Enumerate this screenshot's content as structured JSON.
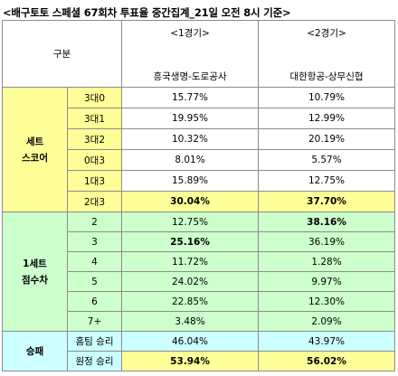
{
  "title": "<배구토토 스페셜 67회차 투표율 중간집계_21일 오전 8시 기준>",
  "header": {
    "category_label": "구분",
    "games": [
      {
        "number": "<1경기>",
        "matchup": "흥국생명-도로공사"
      },
      {
        "number": "<2경기>",
        "matchup": "대한항공-상무신협"
      }
    ]
  },
  "sections": [
    {
      "name_line1": "세트",
      "name_line2": "스코어",
      "color": "#ffff99",
      "rows": [
        {
          "label": "3대0",
          "g1": "15.77%",
          "g2": "10.79%",
          "g1_bold": false,
          "g2_bold": false
        },
        {
          "label": "3대1",
          "g1": "19.95%",
          "g2": "12.99%",
          "g1_bold": false,
          "g2_bold": false
        },
        {
          "label": "3대2",
          "g1": "10.32%",
          "g2": "20.19%",
          "g1_bold": false,
          "g2_bold": false
        },
        {
          "label": "0대3",
          "g1": "8.01%",
          "g2": "5.57%",
          "g1_bold": false,
          "g2_bold": false
        },
        {
          "label": "1대3",
          "g1": "15.89%",
          "g2": "12.75%",
          "g1_bold": false,
          "g2_bold": false
        },
        {
          "label": "2대3",
          "g1": "30.04%",
          "g2": "37.70%",
          "g1_bold": true,
          "g2_bold": true
        }
      ]
    },
    {
      "name_line1": "1세트",
      "name_line2": "점수차",
      "color": "#ccffcc",
      "rows": [
        {
          "label": "2",
          "g1": "12.75%",
          "g2": "38.16%",
          "g1_bold": false,
          "g2_bold": true
        },
        {
          "label": "3",
          "g1": "25.16%",
          "g2": "36.19%",
          "g1_bold": true,
          "g2_bold": false
        },
        {
          "label": "4",
          "g1": "11.72%",
          "g2": "1.28%",
          "g1_bold": false,
          "g2_bold": false
        },
        {
          "label": "5",
          "g1": "24.02%",
          "g2": "9.97%",
          "g1_bold": false,
          "g2_bold": false
        },
        {
          "label": "6",
          "g1": "22.85%",
          "g2": "12.30%",
          "g1_bold": false,
          "g2_bold": false
        },
        {
          "label": "7+",
          "g1": "3.48%",
          "g2": "2.09%",
          "g1_bold": false,
          "g2_bold": false
        }
      ]
    },
    {
      "name_line1": "승패",
      "name_line2": "",
      "color": "#ccffff",
      "rows": [
        {
          "label": "홈팀 승리",
          "g1": "46.04%",
          "g2": "43.97%",
          "g1_bold": false,
          "g2_bold": false
        },
        {
          "label": "원정 승리",
          "g1": "53.94%",
          "g2": "56.02%",
          "g1_bold": true,
          "g2_bold": true
        }
      ]
    }
  ]
}
